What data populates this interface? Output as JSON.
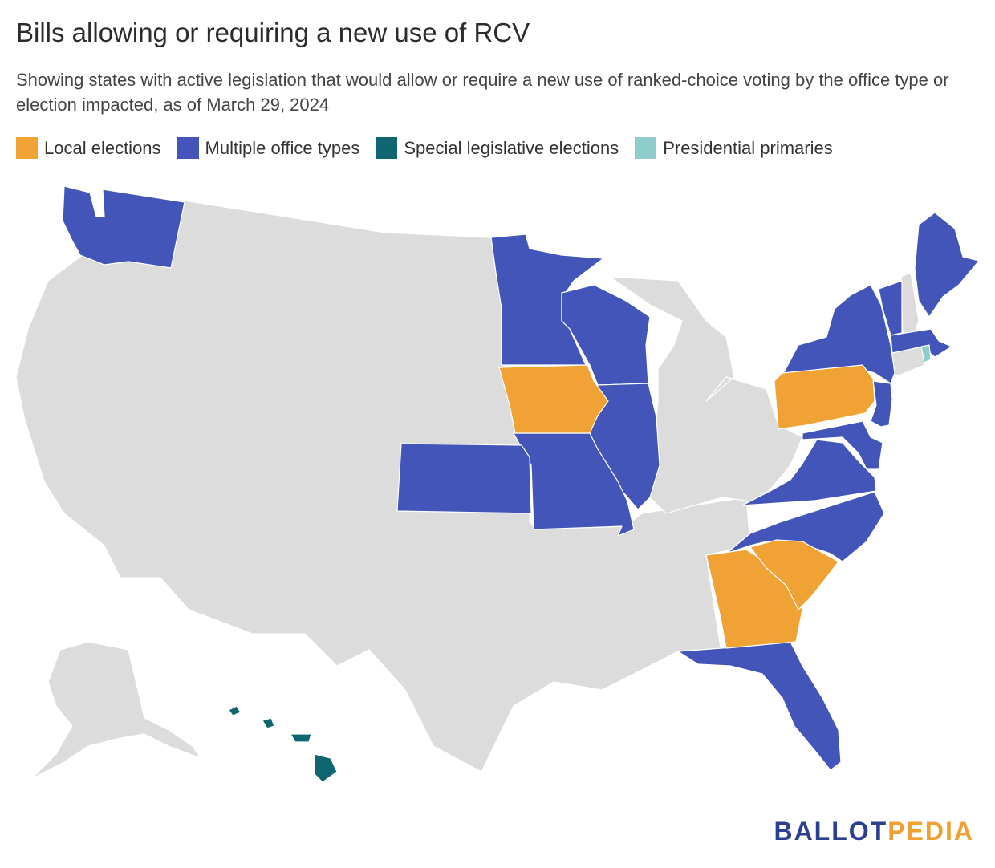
{
  "title": "Bills allowing or requiring a new use of RCV",
  "subtitle": "Showing states with active legislation that would allow or require a new use of ranked-choice voting by the office type or election impacted, as of March 29, 2024",
  "legend": [
    {
      "label": "Local elections",
      "color": "#f0a235"
    },
    {
      "label": "Multiple office types",
      "color": "#4355b8"
    },
    {
      "label": "Special legislative elections",
      "color": "#0d6670"
    },
    {
      "label": "Presidential primaries",
      "color": "#8fcccc"
    }
  ],
  "default_color": "#dcdcdc",
  "states": {
    "local_elections": [
      "Iowa",
      "Pennsylvania",
      "Georgia",
      "South Carolina"
    ],
    "multiple_office_types": [
      "Washington",
      "Minnesota",
      "Wisconsin",
      "Illinois",
      "Missouri",
      "Kansas",
      "New York",
      "Vermont",
      "Maine",
      "Massachusetts",
      "New Jersey",
      "Maryland",
      "Delaware",
      "Virginia",
      "North Carolina",
      "Florida"
    ],
    "special_legislative_elections": [
      "Hawaii"
    ],
    "presidential_primaries": [
      "Rhode Island"
    ]
  },
  "logo": {
    "part1": "BALLOT",
    "part2": "PEDIA"
  }
}
